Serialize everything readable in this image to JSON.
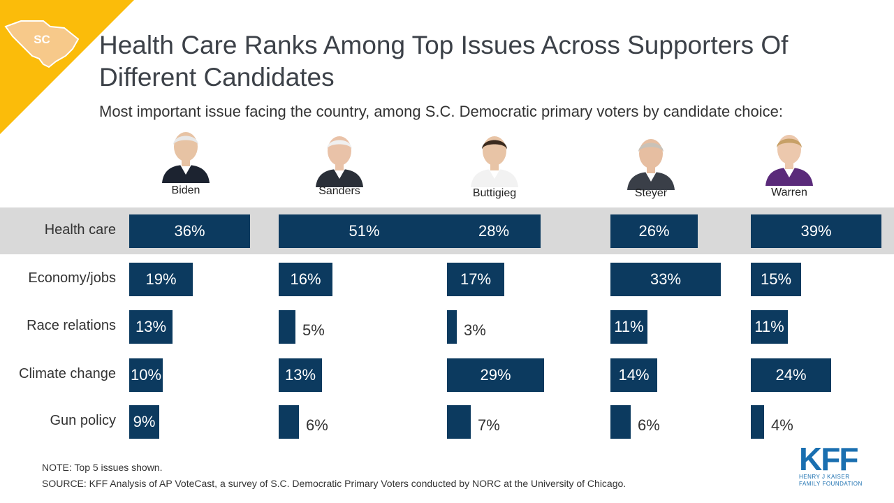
{
  "state_badge": "SC",
  "title": "Health Care Ranks Among Top Issues Across Supporters Of Different Candidates",
  "subtitle": "Most important issue facing the country, among S.C. Democratic primary voters by candidate choice:",
  "colors": {
    "bar": "#0c3a5f",
    "highlight_band": "#d9d9d9",
    "corner": "#fbbc0a",
    "logo": "#1a6fb0"
  },
  "chart_data": {
    "type": "bar",
    "orientation": "horizontal",
    "unit": "%",
    "categories": [
      "Health care",
      "Economy/jobs",
      "Race relations",
      "Climate change",
      "Gun policy"
    ],
    "series": [
      {
        "name": "Biden",
        "values": [
          36,
          19,
          13,
          10,
          9
        ]
      },
      {
        "name": "Sanders",
        "values": [
          51,
          16,
          5,
          13,
          6
        ]
      },
      {
        "name": "Buttigieg",
        "values": [
          28,
          17,
          3,
          29,
          7
        ]
      },
      {
        "name": "Steyer",
        "values": [
          26,
          33,
          11,
          14,
          6
        ]
      },
      {
        "name": "Warren",
        "values": [
          39,
          15,
          11,
          24,
          4
        ]
      }
    ],
    "highlighted_category": "Health care",
    "legend": "none",
    "grid": false
  },
  "footer": {
    "note": "NOTE: Top 5 issues shown.",
    "source": "SOURCE: KFF Analysis of AP VoteCast, a survey of S.C. Democratic Primary Voters conducted by NORC at the University of Chicago."
  },
  "logo": {
    "mark": "KFF",
    "line1": "HENRY J KAISER",
    "line2": "FAMILY FOUNDATION"
  }
}
